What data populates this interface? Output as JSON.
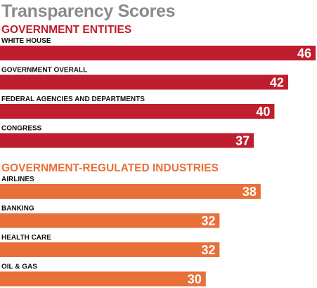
{
  "title": "Transparency Scores",
  "colors": {
    "title": "#8a8a8a",
    "government": "#bf1e2e",
    "industry": "#e8713a"
  },
  "chart_data": {
    "type": "bar",
    "orientation": "horizontal",
    "title": "Transparency Scores",
    "groups": [
      {
        "name": "GOVERNMENT ENTITIES",
        "color": "#bf1e2e",
        "categories": [
          "WHITE HOUSE",
          "GOVERNMENT OVERALL",
          "FEDERAL AGENCIES AND DEPARTMENTS",
          "CONGRESS"
        ],
        "values": [
          46,
          42,
          40,
          37
        ]
      },
      {
        "name": "GOVERNMENT-REGULATED INDUSTRIES",
        "color": "#e8713a",
        "categories": [
          "AIRLINES",
          "BANKING",
          "HEALTH CARE",
          "OIL & GAS"
        ],
        "values": [
          38,
          32,
          32,
          30
        ]
      }
    ],
    "xlim": [
      0,
      46
    ],
    "data_labels": true,
    "grid": false,
    "legend": "none"
  }
}
